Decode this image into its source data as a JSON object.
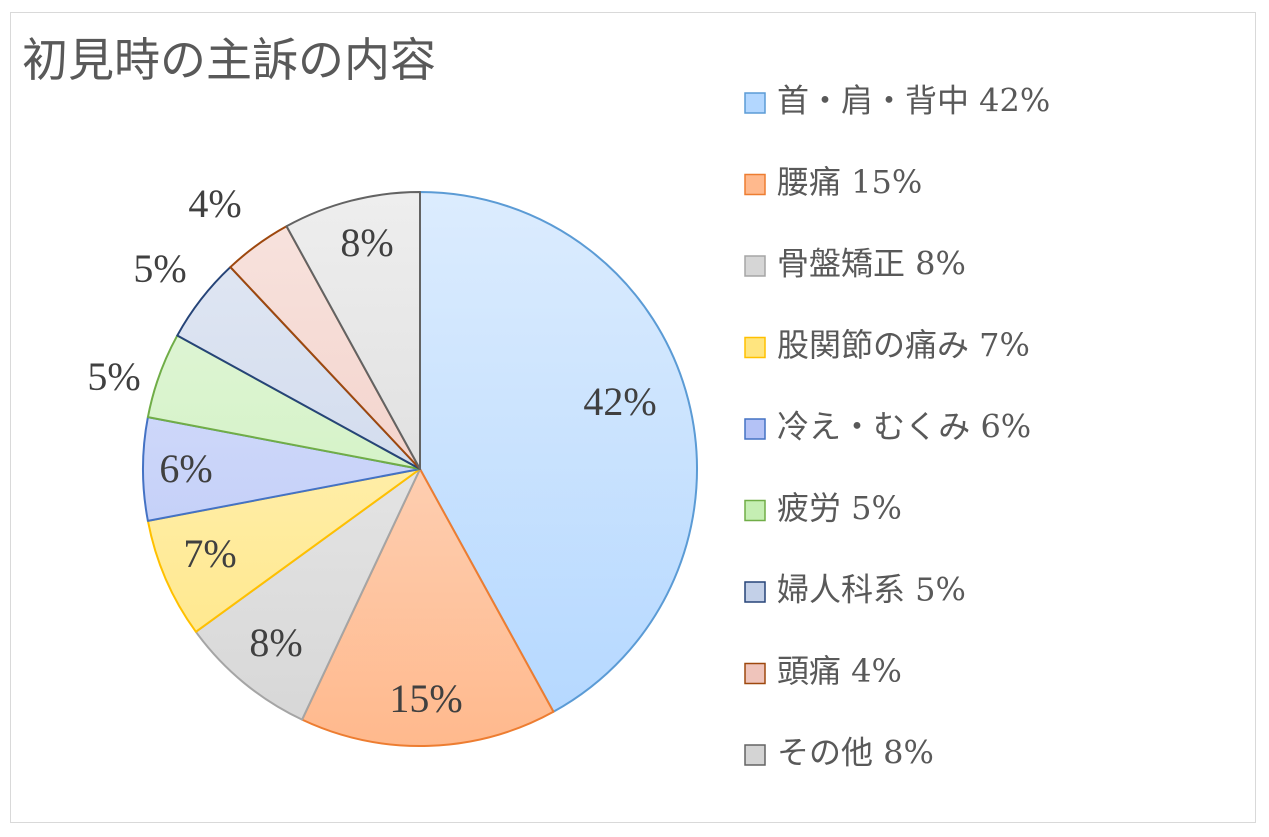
{
  "chart_data": {
    "type": "pie",
    "title": "初見時の主訴の内容",
    "legend_position": "right",
    "start_angle_deg": 0,
    "direction": "clockwise",
    "slices": [
      {
        "label": "首・肩・背中 42%",
        "data_label": "42%",
        "value": 42,
        "color": "#b3d7ff",
        "stroke": "#5b9bd5",
        "gradient_start": "#dcecfe"
      },
      {
        "label": "腰痛 15%",
        "data_label": "15%",
        "value": 15,
        "color": "#ffb98d",
        "stroke": "#ed7d31",
        "gradient_start": "#fde3d4"
      },
      {
        "label": "骨盤矯正 8%",
        "data_label": "8%",
        "value": 8,
        "color": "#d6d6d6",
        "stroke": "#a5a5a5",
        "gradient_start": "#f1f1f1"
      },
      {
        "label": "股関節の痛み 7%",
        "data_label": "7%",
        "value": 7,
        "color": "#ffe57f",
        "stroke": "#ffc000",
        "gradient_start": "#fff6cf"
      },
      {
        "label": "冷え・むくみ 6%",
        "data_label": "6%",
        "value": 6,
        "color": "#b4c2f6",
        "stroke": "#4472c4",
        "gradient_start": "#dfe6fc"
      },
      {
        "label": "疲労 5%",
        "data_label": "5%",
        "value": 5,
        "color": "#c5eeb3",
        "stroke": "#70ad47",
        "gradient_start": "#e6f7de"
      },
      {
        "label": "婦人科系 5%",
        "data_label": "5%",
        "value": 5,
        "color": "#c3d0e8",
        "stroke": "#264478",
        "gradient_start": "#e3e9f4"
      },
      {
        "label": "頭痛 4%",
        "data_label": "4%",
        "value": 4,
        "color": "#efc4bb",
        "stroke": "#9e480e",
        "gradient_start": "#f8e4df"
      },
      {
        "label": "その他 8%",
        "data_label": "8%",
        "value": 8,
        "color": "#d4d4d4",
        "stroke": "#636363",
        "gradient_start": "#eeeeee"
      }
    ]
  }
}
